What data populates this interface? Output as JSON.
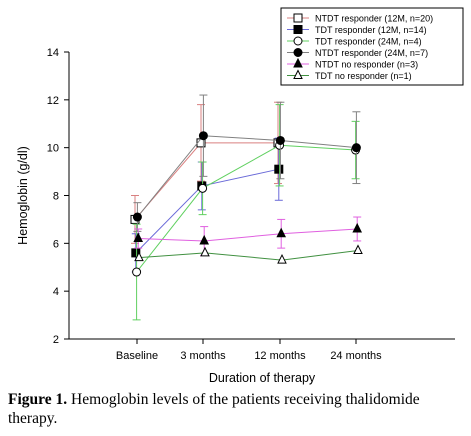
{
  "chart_data": {
    "type": "line",
    "title": "",
    "xlabel": "Duration of therapy",
    "ylabel": "Hemoglobin (g/dl)",
    "ylim": [
      2,
      14
    ],
    "yticks": [
      2,
      4,
      6,
      8,
      10,
      12,
      14
    ],
    "categories": [
      "Baseline",
      "3 months",
      "12 months",
      "24 months"
    ],
    "grid": false,
    "legend_position": "top-right",
    "series": [
      {
        "name": "NTDT responder  (12M, n=20)",
        "color": "#d98080",
        "marker": "square-open",
        "values": [
          7.0,
          10.2,
          10.2,
          null
        ],
        "errors": [
          1.0,
          1.6,
          1.7,
          null
        ]
      },
      {
        "name": "TDT responder (12M, n=14)",
        "color": "#6a6ad8",
        "marker": "square-filled",
        "values": [
          5.6,
          8.4,
          9.1,
          null
        ],
        "errors": [
          0.8,
          1.0,
          1.3,
          null
        ]
      },
      {
        "name": "TDT responder (24M, n=4)",
        "color": "#60d060",
        "marker": "circle-open",
        "values": [
          4.8,
          8.3,
          10.1,
          9.9
        ],
        "errors": [
          2.0,
          1.1,
          1.7,
          1.2
        ]
      },
      {
        "name": "NTDT responder (24M,   n=7)",
        "color": "#808080",
        "marker": "circle-filled",
        "values": [
          7.1,
          10.5,
          10.3,
          10.0
        ],
        "errors": [
          0.6,
          1.7,
          1.6,
          1.5
        ]
      },
      {
        "name": "NTDT no responder (n=3)",
        "color": "#e060e0",
        "marker": "triangle-filled",
        "values": [
          6.2,
          6.1,
          6.4,
          6.6
        ],
        "errors": [
          0.4,
          0.6,
          0.6,
          0.5
        ]
      },
      {
        "name": "TDT no responder (n=1)",
        "color": "#409040",
        "marker": "triangle-open",
        "values": [
          5.4,
          5.6,
          5.3,
          5.7
        ],
        "errors": [
          0,
          0,
          0,
          0
        ]
      }
    ]
  },
  "caption": {
    "label": "Figure 1.",
    "text": " Hemoglobin levels of the patients receiving thalidomide therapy."
  }
}
